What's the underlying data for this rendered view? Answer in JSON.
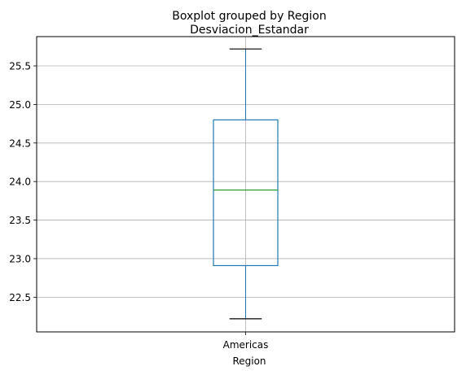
{
  "chart_data": {
    "type": "boxplot",
    "suptitle": "Boxplot grouped by Region",
    "title": "Desviacion_Estandar",
    "xlabel": "Region",
    "ylabel": "",
    "categories": [
      "Americas"
    ],
    "boxes": [
      {
        "category": "Americas",
        "whisker_low": 22.22,
        "q1": 22.91,
        "median": 23.89,
        "q3": 24.8,
        "whisker_high": 25.72
      }
    ],
    "ylim": [
      22.05,
      25.88
    ],
    "yticks": [
      22.5,
      23.0,
      23.5,
      24.0,
      24.5,
      25.0,
      25.5
    ],
    "ytick_labels": [
      "22.5",
      "23.0",
      "23.5",
      "24.0",
      "24.5",
      "25.0",
      "25.5"
    ],
    "grid": true,
    "colors": {
      "box": "#1f77b4",
      "median": "#2ca02c",
      "whisker": "#1f77b4",
      "cap": "#000000",
      "grid": "#b0b0b0"
    }
  }
}
